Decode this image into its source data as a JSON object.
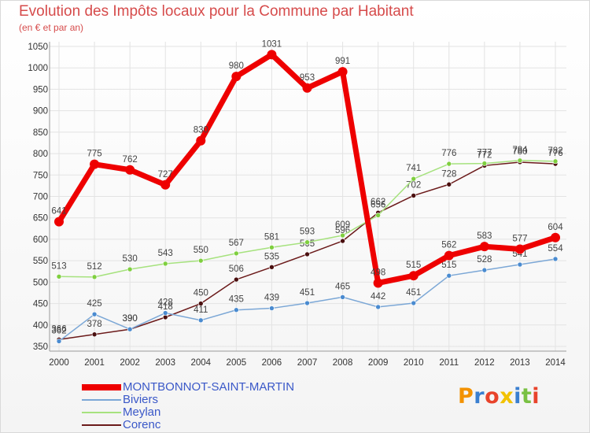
{
  "title": "Evolution des Impôts locaux pour la Commune par Habitant",
  "subtitle": "(en € et par an)",
  "logo_text": "Proxiti",
  "chart_data": {
    "type": "line",
    "title": "Evolution des Impôts locaux pour la Commune par Habitant",
    "subtitle": "(en € et par an)",
    "xlabel": "",
    "ylabel": "",
    "x": [
      2000,
      2001,
      2002,
      2003,
      2004,
      2005,
      2006,
      2007,
      2008,
      2009,
      2010,
      2011,
      2012,
      2013,
      2014
    ],
    "ylim": [
      350,
      1050
    ],
    "yticks": [
      350,
      400,
      450,
      500,
      550,
      600,
      650,
      700,
      750,
      800,
      850,
      900,
      950,
      1000,
      1050
    ],
    "grid": true,
    "legend_position": "bottom-left",
    "series": [
      {
        "name": "Corenc",
        "color": "#6b1a1a",
        "marker": "#4a0f0f",
        "values": [
          366,
          378,
          390,
          418,
          450,
          506,
          535,
          565,
          596,
          662,
          702,
          728,
          772,
          780,
          776
        ]
      },
      {
        "name": "Meylan",
        "color": "#a6e27e",
        "marker": "#7fcf3f",
        "values": [
          513,
          512,
          530,
          543,
          550,
          567,
          581,
          593,
          609,
          656,
          741,
          776,
          777,
          784,
          782
        ]
      },
      {
        "name": "Biviers",
        "color": "#7ba7d6",
        "marker": "#4a8bd0",
        "values": [
          362,
          425,
          390,
          428,
          411,
          435,
          439,
          451,
          465,
          442,
          451,
          515,
          528,
          541,
          554
        ]
      },
      {
        "name": "MONTBONNOT-SAINT-MARTIN",
        "color": "#ee0000",
        "marker": "#ee0000",
        "values": [
          641,
          775,
          762,
          727,
          830,
          980,
          1031,
          953,
          991,
          498,
          515,
          562,
          583,
          577,
          604
        ]
      }
    ]
  },
  "legend": [
    {
      "label": "MONTBONNOT-SAINT-MARTIN",
      "color": "#ee0000"
    },
    {
      "label": "Biviers",
      "color": "#7ba7d6"
    },
    {
      "label": "Meylan",
      "color": "#a6e27e"
    },
    {
      "label": "Corenc",
      "color": "#6b1a1a"
    }
  ]
}
